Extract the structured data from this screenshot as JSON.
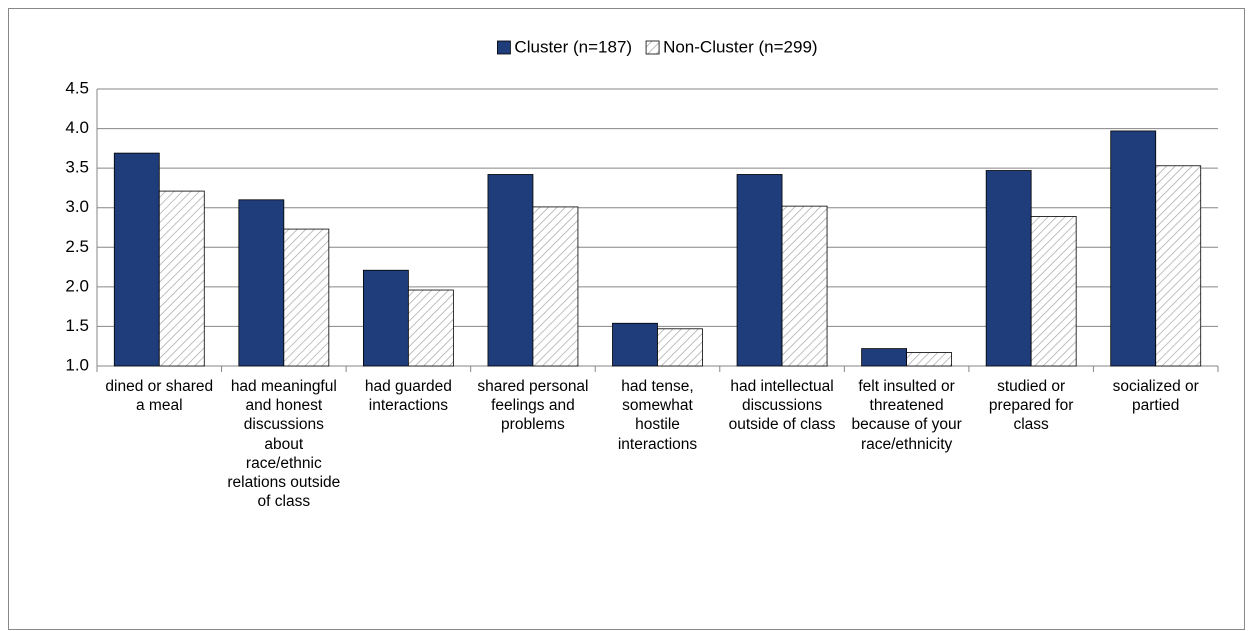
{
  "chart_data": {
    "type": "bar",
    "categories": [
      "dined or shared a meal",
      "had meaningful and honest discussions about race/ethnic relations outside of class",
      "had guarded interactions",
      "shared personal feelings and problems",
      "had tense, somewhat hostile interactions",
      "had intellectual discussions outside of class",
      "felt insulted or threatened because of your race/ethnicity",
      "studied or prepared for class",
      "socialized or partied"
    ],
    "series": [
      {
        "name": "Cluster (n=187)",
        "color": "#1f3d7a",
        "values": [
          3.69,
          3.1,
          2.21,
          3.42,
          1.54,
          3.42,
          1.22,
          3.47,
          3.97
        ]
      },
      {
        "name": "Non-Cluster (n=299)",
        "color": "#a6a6a6",
        "hatch": true,
        "values": [
          3.21,
          2.73,
          1.96,
          3.01,
          1.47,
          3.02,
          1.17,
          2.89,
          3.53
        ]
      }
    ],
    "ylim": [
      1,
      4.5
    ],
    "yticks": [
      {
        "value": 1,
        "label": "1.0"
      },
      1.5,
      {
        "value": 2,
        "label": "2.0"
      },
      2.5,
      {
        "value": 3,
        "label": "3.0"
      },
      3.5,
      {
        "value": 4,
        "label": "4.0"
      },
      4.5
    ],
    "grid": true,
    "legend": "top"
  }
}
